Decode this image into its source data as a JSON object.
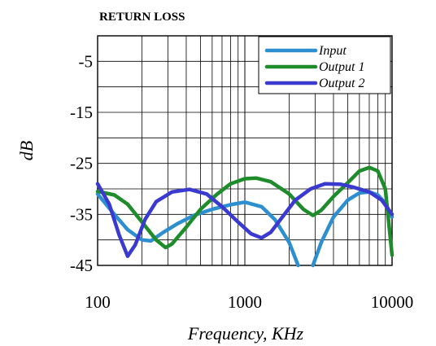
{
  "chart_data": {
    "type": "line",
    "title": "RETURN LOSS",
    "xlabel": "Frequency, KHz",
    "ylabel": "dB",
    "xscale": "log",
    "xlim": [
      100,
      10000
    ],
    "ylim": [
      -45,
      0
    ],
    "x_ticks": [
      100,
      1000,
      10000
    ],
    "x_tick_labels": [
      "100",
      "1000",
      "10000"
    ],
    "y_ticks": [
      -5,
      -15,
      -25,
      -35,
      -45
    ],
    "y_tick_labels": [
      "-5",
      "-15",
      "-25",
      "-35",
      "-45"
    ],
    "grid": true,
    "legend_position": "top-right",
    "series": [
      {
        "name": "Input",
        "color": "#2e8fd0",
        "points": [
          [
            100,
            -31
          ],
          [
            130,
            -35
          ],
          [
            160,
            -38
          ],
          [
            200,
            -40
          ],
          [
            230,
            -40.2
          ],
          [
            280,
            -38.5
          ],
          [
            350,
            -36.8
          ],
          [
            450,
            -35.2
          ],
          [
            600,
            -34
          ],
          [
            800,
            -33.1
          ],
          [
            1000,
            -32.6
          ],
          [
            1300,
            -33.5
          ],
          [
            1600,
            -36
          ],
          [
            2000,
            -40.5
          ],
          [
            2300,
            -45
          ]
        ],
        "points_2": [
          [
            2900,
            -45
          ],
          [
            3300,
            -40.5
          ],
          [
            4000,
            -35.5
          ],
          [
            5000,
            -32.2
          ],
          [
            6000,
            -30.8
          ],
          [
            7000,
            -30.6
          ],
          [
            8000,
            -31.2
          ],
          [
            9000,
            -32.8
          ],
          [
            10000,
            -35.5
          ]
        ]
      },
      {
        "name": "Output 1",
        "color": "#1e8c2a",
        "points": [
          [
            100,
            -30.5
          ],
          [
            130,
            -31.2
          ],
          [
            160,
            -33
          ],
          [
            200,
            -36.5
          ],
          [
            250,
            -40
          ],
          [
            290,
            -41.5
          ],
          [
            320,
            -40.8
          ],
          [
            400,
            -37.5
          ],
          [
            500,
            -34
          ],
          [
            650,
            -31
          ],
          [
            800,
            -29
          ],
          [
            1000,
            -28
          ],
          [
            1200,
            -27.9
          ],
          [
            1500,
            -28.6
          ],
          [
            2000,
            -31
          ],
          [
            2500,
            -34
          ],
          [
            2900,
            -35.2
          ],
          [
            3300,
            -34.2
          ],
          [
            4000,
            -31.5
          ],
          [
            5000,
            -28.8
          ],
          [
            6000,
            -26.5
          ],
          [
            7000,
            -25.8
          ],
          [
            8000,
            -26.5
          ],
          [
            9000,
            -30
          ],
          [
            10000,
            -43
          ]
        ]
      },
      {
        "name": "Output 2",
        "color": "#3a3ad0",
        "points": [
          [
            100,
            -29
          ],
          [
            120,
            -33
          ],
          [
            140,
            -39
          ],
          [
            160,
            -43.2
          ],
          [
            180,
            -41
          ],
          [
            210,
            -36
          ],
          [
            250,
            -32.5
          ],
          [
            320,
            -30.6
          ],
          [
            420,
            -30.1
          ],
          [
            550,
            -31
          ],
          [
            700,
            -33.5
          ],
          [
            900,
            -36.5
          ],
          [
            1100,
            -38.8
          ],
          [
            1300,
            -39.6
          ],
          [
            1500,
            -38.5
          ],
          [
            1800,
            -35.5
          ],
          [
            2200,
            -32.2
          ],
          [
            2800,
            -30
          ],
          [
            3500,
            -29
          ],
          [
            4500,
            -29.1
          ],
          [
            5500,
            -29.7
          ],
          [
            7000,
            -30.6
          ],
          [
            8500,
            -32.2
          ],
          [
            10000,
            -35
          ]
        ]
      }
    ]
  }
}
